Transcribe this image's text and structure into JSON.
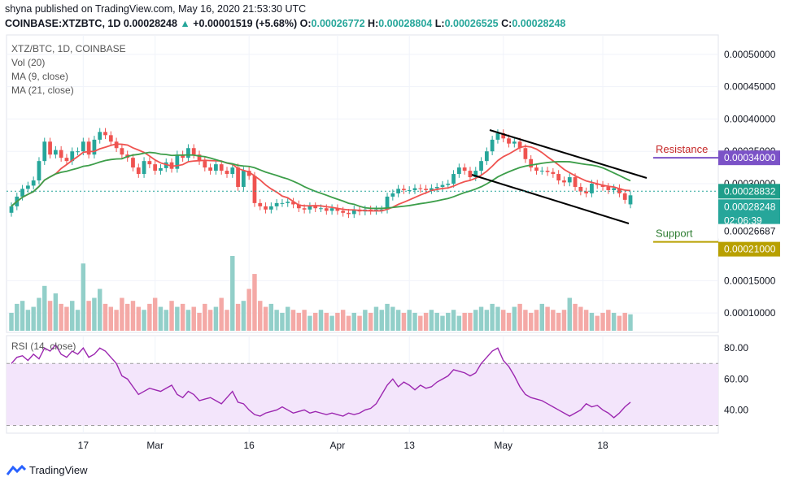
{
  "header": {
    "published": "shyna published on TradingView.com, May 16, 2020 21:53:30 UTC",
    "symbol": "COINBASE:XTZBTC, 1D",
    "last": "0.00028248",
    "change": "+0.00001519 (+5.68%)",
    "o_label": "O:",
    "o": "0.00026772",
    "h_label": "H:",
    "h": "0.00028804",
    "l_label": "L:",
    "l": "0.00026525",
    "c_label": "C:",
    "c": "0.00028248"
  },
  "legend": {
    "pair": "XTZ/BTC, 1D, COINBASE",
    "vol": "Vol (20)",
    "ma9": "MA (9, close)",
    "ma21": "MA (21, close)",
    "rsi": "RSI (14, close)"
  },
  "annotations": {
    "resistance": "Resistance",
    "support": "Support",
    "resistance_value": "0.00034000",
    "support_value": "0.00021000",
    "price_tags": [
      "0.00028832",
      "0.00028248",
      "02:06:39",
      "0.00026687"
    ]
  },
  "colors": {
    "up": "#26a69a",
    "down": "#ef5350",
    "vol_up": "#92cfc9",
    "vol_down": "#f4a9a6",
    "ma9": "#ef5350",
    "ma21": "#3d9e4a",
    "rsi": "#9c27b0",
    "rsi_band": "#f3e5fb",
    "resistance": "#7b52c7",
    "support": "#b8a000",
    "resistance_text": "#c62828",
    "support_text": "#2e7d32"
  },
  "footer": {
    "brand": "TradingView"
  },
  "chart_data": {
    "type": "candlestick",
    "price_axis": {
      "range": [
        7e-05,
        0.00053
      ],
      "ticks": [
        "0.00050000",
        "0.00045000",
        "0.00040000",
        "0.00035000",
        "0.00030000",
        "0.00015000",
        "0.00010000"
      ],
      "tick_values": [
        0.0005,
        0.00045,
        0.0004,
        0.00035,
        0.0003,
        0.00015,
        0.0001
      ]
    },
    "rsi_axis": {
      "range": [
        25,
        88
      ],
      "ticks": [
        "80.00",
        "60.00",
        "40.00"
      ],
      "tick_values": [
        80,
        60,
        40
      ],
      "bands": [
        70,
        30
      ]
    },
    "x_ticks": [
      {
        "label": "17",
        "i": 13
      },
      {
        "label": "Mar",
        "i": 26
      },
      {
        "label": "16",
        "i": 43
      },
      {
        "label": "Apr",
        "i": 59
      },
      {
        "label": "13",
        "i": 72
      },
      {
        "label": "May",
        "i": 89
      },
      {
        "label": "18",
        "i": 107
      }
    ],
    "closes": [
      0.000265,
      0.00028,
      0.000292,
      0.000297,
      0.000305,
      0.000335,
      0.000365,
      0.000345,
      0.000352,
      0.00034,
      0.000335,
      0.00035,
      0.00035,
      0.000365,
      0.000345,
      0.000368,
      0.00038,
      0.000375,
      0.000365,
      0.000355,
      0.000345,
      0.00034,
      0.000325,
      0.000315,
      0.000335,
      0.00033,
      0.00032,
      0.000324,
      0.000333,
      0.000323,
      0.000345,
      0.00034,
      0.000355,
      0.000345,
      0.000335,
      0.000325,
      0.00032,
      0.00033,
      0.00032,
      0.000315,
      0.000325,
      0.000295,
      0.00032,
      0.000312,
      0.00027,
      0.000265,
      0.00026,
      0.000265,
      0.00027,
      0.00027,
      0.000272,
      0.000268,
      0.000262,
      0.00026,
      0.000265,
      0.000262,
      0.000262,
      0.000258,
      0.000262,
      0.000258,
      0.000255,
      0.000253,
      0.00026,
      0.000257,
      0.00026,
      0.000258,
      0.00026,
      0.00026,
      0.00028,
      0.000285,
      0.000292,
      0.00029,
      0.00029,
      0.000293,
      0.000292,
      0.00029,
      0.000293,
      0.000295,
      0.000298,
      0.0003,
      0.000315,
      0.000325,
      0.00032,
      0.00031,
      0.00032,
      0.000335,
      0.00035,
      0.000368,
      0.000378,
      0.00037,
      0.000362,
      0.000365,
      0.000355,
      0.000338,
      0.000325,
      0.00032,
      0.00032,
      0.000318,
      0.000315,
      0.000305,
      0.000302,
      0.00031,
      0.000295,
      0.000288,
      0.000285,
      0.0003,
      0.000298,
      0.000295,
      0.00029,
      0.000293,
      0.000285,
      0.000275,
      0.000282
    ],
    "opens": [
      0.000255,
      0.000265,
      0.00028,
      0.000292,
      0.000297,
      0.000305,
      0.000335,
      0.000365,
      0.000345,
      0.000352,
      0.00034,
      0.000335,
      0.00035,
      0.00035,
      0.000365,
      0.000345,
      0.000368,
      0.00038,
      0.000375,
      0.000365,
      0.000355,
      0.000345,
      0.00034,
      0.000325,
      0.000315,
      0.000335,
      0.00033,
      0.00032,
      0.000324,
      0.000333,
      0.000323,
      0.000345,
      0.00034,
      0.000355,
      0.000345,
      0.000335,
      0.000325,
      0.00032,
      0.00033,
      0.00032,
      0.000315,
      0.000325,
      0.000295,
      0.00032,
      0.000312,
      0.00027,
      0.000265,
      0.00026,
      0.000265,
      0.00027,
      0.00027,
      0.000272,
      0.000268,
      0.000262,
      0.00026,
      0.000265,
      0.000262,
      0.000262,
      0.000258,
      0.000262,
      0.000258,
      0.000255,
      0.000253,
      0.00026,
      0.000257,
      0.00026,
      0.000258,
      0.00026,
      0.00026,
      0.00028,
      0.000285,
      0.000292,
      0.00029,
      0.00029,
      0.000293,
      0.000292,
      0.00029,
      0.000293,
      0.000295,
      0.000298,
      0.0003,
      0.000315,
      0.000325,
      0.00032,
      0.00031,
      0.00032,
      0.000335,
      0.00035,
      0.000368,
      0.000378,
      0.00037,
      0.000362,
      0.000365,
      0.000355,
      0.000338,
      0.000325,
      0.00032,
      0.00032,
      0.000318,
      0.000315,
      0.000305,
      0.000302,
      0.00031,
      0.000295,
      0.000288,
      0.000285,
      0.0003,
      0.000298,
      0.000295,
      0.00029,
      0.000293,
      0.000285,
      0.000268
    ],
    "volumes": [
      12,
      18,
      20,
      14,
      16,
      22,
      30,
      20,
      25,
      18,
      16,
      20,
      14,
      45,
      20,
      22,
      28,
      18,
      16,
      14,
      22,
      18,
      20,
      16,
      14,
      18,
      22,
      16,
      14,
      20,
      16,
      18,
      14,
      16,
      12,
      18,
      14,
      16,
      22,
      14,
      50,
      18,
      20,
      28,
      38,
      20,
      16,
      18,
      14,
      12,
      16,
      14,
      12,
      14,
      10,
      12,
      14,
      12,
      10,
      12,
      14,
      10,
      12,
      10,
      14,
      12,
      16,
      14,
      18,
      16,
      14,
      12,
      14,
      12,
      10,
      12,
      14,
      12,
      10,
      12,
      14,
      10,
      12,
      12,
      14,
      16,
      14,
      18,
      16,
      14,
      12,
      16,
      18,
      14,
      12,
      14,
      18,
      16,
      14,
      12,
      14,
      22,
      18,
      16,
      14,
      12,
      10,
      12,
      14,
      12,
      10,
      12,
      11
    ],
    "rsi": [
      70,
      74,
      75,
      72,
      76,
      73,
      80,
      78,
      82,
      76,
      74,
      78,
      76,
      80,
      74,
      76,
      80,
      78,
      74,
      70,
      62,
      60,
      55,
      50,
      52,
      54,
      53,
      52,
      54,
      56,
      50,
      48,
      52,
      50,
      46,
      47,
      48,
      46,
      44,
      48,
      52,
      45,
      44,
      40,
      37,
      36,
      38,
      39,
      40,
      42,
      40,
      38,
      39,
      40,
      38,
      39,
      38,
      37,
      38,
      37,
      36,
      38,
      37,
      38,
      40,
      41,
      44,
      50,
      56,
      60,
      55,
      58,
      56,
      53,
      56,
      54,
      55,
      58,
      60,
      62,
      66,
      65,
      64,
      62,
      64,
      70,
      74,
      78,
      80,
      72,
      68,
      62,
      55,
      50,
      48,
      47,
      46,
      44,
      42,
      40,
      38,
      36,
      38,
      40,
      44,
      42,
      43,
      40,
      38,
      35,
      38,
      42,
      45
    ]
  }
}
